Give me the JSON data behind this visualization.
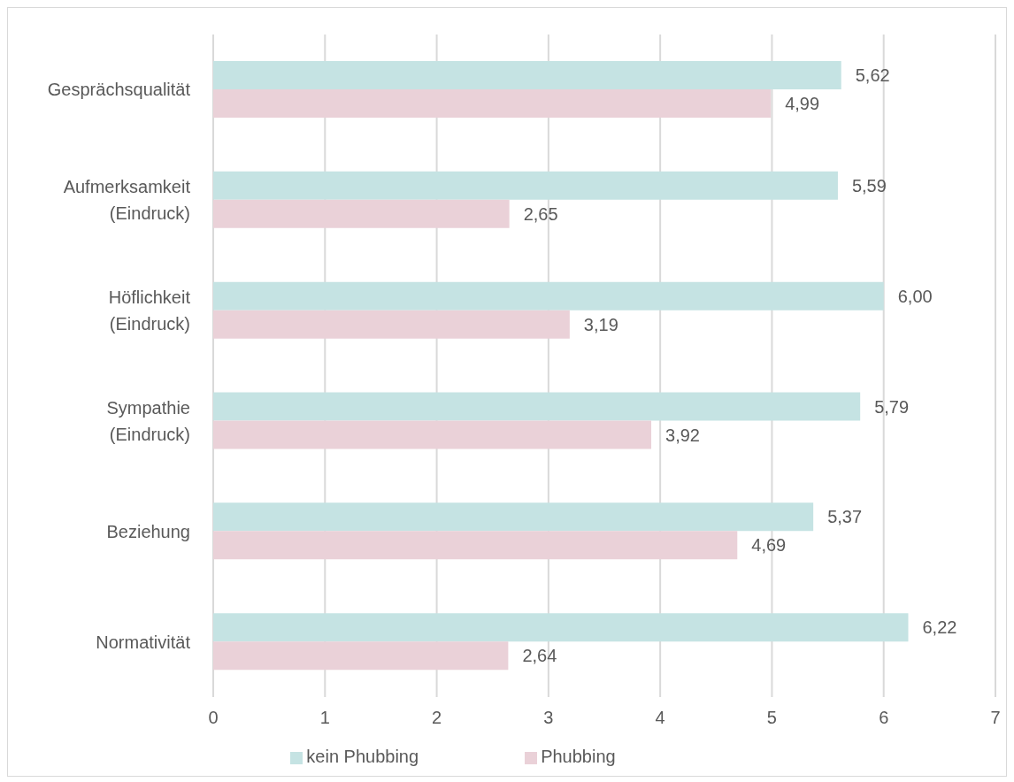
{
  "chart_data": {
    "type": "bar",
    "orientation": "horizontal",
    "categories": [
      "Gesprächsqualität",
      "Aufmerksamkeit (Eindruck)",
      "Höflichkeit (Eindruck)",
      "Sympathie (Eindruck)",
      "Beziehung",
      "Normativität"
    ],
    "series": [
      {
        "name": "kein Phubbing",
        "color": "#c5e3e3",
        "values": [
          5.62,
          5.59,
          6.0,
          5.79,
          5.37,
          6.22
        ],
        "value_labels": [
          "5,62",
          "5,59",
          "6,00",
          "5,79",
          "5,37",
          "6,22"
        ]
      },
      {
        "name": "Phubbing",
        "color": "#ead1d8",
        "values": [
          4.99,
          2.65,
          3.19,
          3.92,
          4.69,
          2.64
        ],
        "value_labels": [
          "4,99",
          "2,65",
          "3,19",
          "3,92",
          "4,69",
          "2,64"
        ]
      }
    ],
    "xlim": [
      0,
      7
    ],
    "xticks": [
      0,
      1,
      2,
      3,
      4,
      5,
      6,
      7
    ],
    "grid": "x",
    "legend": "bottom"
  }
}
